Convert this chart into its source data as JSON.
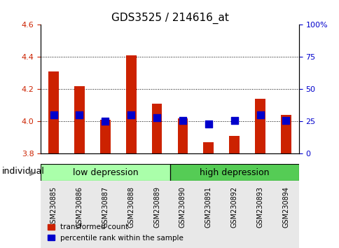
{
  "title": "GDS3525 / 214616_at",
  "samples": [
    "GSM230885",
    "GSM230886",
    "GSM230887",
    "GSM230888",
    "GSM230889",
    "GSM230890",
    "GSM230891",
    "GSM230892",
    "GSM230893",
    "GSM230894"
  ],
  "bar_values": [
    4.31,
    4.22,
    4.01,
    4.41,
    4.11,
    4.02,
    3.87,
    3.91,
    4.14,
    4.04
  ],
  "bar_base": 3.8,
  "percentile_values": [
    30,
    30,
    25,
    30,
    28,
    26,
    23,
    26,
    30,
    26
  ],
  "ylim_left": [
    3.8,
    4.6
  ],
  "ylim_right": [
    0,
    100
  ],
  "yticks_left": [
    3.8,
    4.0,
    4.2,
    4.4,
    4.6
  ],
  "yticks_right": [
    0,
    25,
    50,
    75,
    100
  ],
  "ytick_labels_right": [
    "0",
    "25",
    "50",
    "75",
    "100%"
  ],
  "group_labels": [
    "low depression",
    "high depression"
  ],
  "group_colors": [
    "#aaffaa",
    "#55cc55"
  ],
  "group_ranges": [
    0,
    5,
    10
  ],
  "bar_color": "#cc2200",
  "dot_color": "#0000cc",
  "grid_color": "#000000",
  "bg_color": "#ffffff",
  "axis_bg": "#f0f0f0",
  "legend_items": [
    "transformed count",
    "percentile rank within the sample"
  ],
  "legend_colors": [
    "#cc2200",
    "#0000cc"
  ],
  "xlabel": "individual",
  "title_fontsize": 11,
  "tick_fontsize": 8,
  "label_fontsize": 9
}
